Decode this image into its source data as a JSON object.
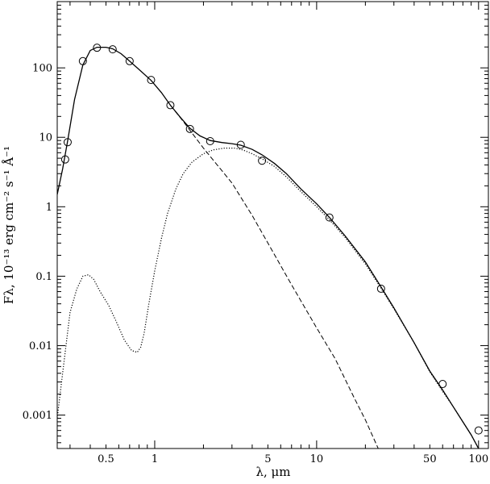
{
  "chart_data": {
    "type": "scatter",
    "title": "",
    "xlabel": "λ, μm",
    "ylabel": "Fλ, 10⁻¹³ erg cm⁻² s⁻¹ Å⁻¹",
    "xscale": "log",
    "yscale": "log",
    "xlim": [
      0.25,
      115
    ],
    "ylim": [
      0.00033,
      900
    ],
    "x_ticks": [
      {
        "value": 0.5,
        "label": "0.5"
      },
      {
        "value": 1,
        "label": "1"
      },
      {
        "value": 5,
        "label": "5"
      },
      {
        "value": 10,
        "label": "10"
      },
      {
        "value": 50,
        "label": "50"
      },
      {
        "value": 100,
        "label": "100"
      }
    ],
    "y_ticks": [
      {
        "value": 0.001,
        "label": "0.001"
      },
      {
        "value": 0.01,
        "label": "0.01"
      },
      {
        "value": 0.1,
        "label": "0.1"
      },
      {
        "value": 1,
        "label": "1"
      },
      {
        "value": 10,
        "label": "10"
      },
      {
        "value": 100,
        "label": "100"
      }
    ],
    "grid": false,
    "legend": "none",
    "series": [
      {
        "style": "markers-open-circle",
        "x": [
          0.28,
          0.29,
          0.36,
          0.44,
          0.55,
          0.7,
          0.95,
          1.25,
          1.65,
          2.2,
          3.4,
          4.6,
          12,
          25,
          60,
          100
        ],
        "y": [
          4.8,
          8.5,
          125,
          195,
          185,
          125,
          67,
          29,
          13.2,
          8.8,
          7.8,
          4.6,
          0.7,
          0.066,
          0.0028,
          0.0006
        ]
      },
      {
        "style": "solid-line",
        "x": [
          0.25,
          0.27,
          0.29,
          0.32,
          0.36,
          0.4,
          0.44,
          0.5,
          0.55,
          0.62,
          0.7,
          0.8,
          0.95,
          1.1,
          1.25,
          1.45,
          1.65,
          1.9,
          2.2,
          2.6,
          3.0,
          3.4,
          4.0,
          4.6,
          5.5,
          6.5,
          8,
          10,
          12,
          15,
          20,
          25,
          30,
          40,
          50,
          60,
          70,
          80,
          90,
          100
        ],
        "y": [
          1.5,
          3.5,
          9,
          35,
          110,
          178,
          198,
          198,
          188,
          160,
          125,
          95,
          66,
          44,
          29,
          19,
          13.5,
          10.5,
          9.0,
          8.4,
          8.1,
          7.7,
          6.7,
          5.6,
          4.2,
          3.0,
          1.8,
          1.1,
          0.7,
          0.38,
          0.16,
          0.07,
          0.035,
          0.011,
          0.0043,
          0.0023,
          0.0013,
          0.0008,
          0.00052,
          0.00033
        ]
      },
      {
        "style": "dashed-line",
        "x": [
          1.25,
          1.5,
          2.0,
          3.0,
          4.0,
          5.0,
          7.0,
          10,
          13,
          17,
          20,
          24
        ],
        "y": [
          29,
          17,
          7,
          2.2,
          0.75,
          0.3,
          0.075,
          0.018,
          0.0065,
          0.0018,
          0.00085,
          0.00033
        ]
      },
      {
        "style": "dotted-line",
        "x": [
          0.25,
          0.27,
          0.3,
          0.33,
          0.36,
          0.39,
          0.42,
          0.46,
          0.52,
          0.58,
          0.65,
          0.72,
          0.78,
          0.82,
          0.86,
          0.92,
          1.0,
          1.1,
          1.2,
          1.35,
          1.5,
          1.7,
          2.0,
          2.3,
          2.7,
          3.1,
          3.5,
          4.0,
          4.6,
          5.5,
          6.5,
          8,
          10,
          12,
          15,
          20,
          25,
          30,
          40,
          50,
          60,
          70,
          80,
          90,
          100
        ],
        "y": [
          0.0009,
          0.004,
          0.03,
          0.065,
          0.1,
          0.105,
          0.09,
          0.06,
          0.038,
          0.022,
          0.012,
          0.0085,
          0.008,
          0.0095,
          0.015,
          0.04,
          0.12,
          0.35,
          0.8,
          1.8,
          3.0,
          4.4,
          5.8,
          6.6,
          7.0,
          7.0,
          6.6,
          5.8,
          4.9,
          3.8,
          2.7,
          1.65,
          1.0,
          0.65,
          0.36,
          0.15,
          0.067,
          0.034,
          0.011,
          0.0042,
          0.0022,
          0.0013,
          0.0008,
          0.00052,
          0.00033
        ]
      }
    ]
  }
}
